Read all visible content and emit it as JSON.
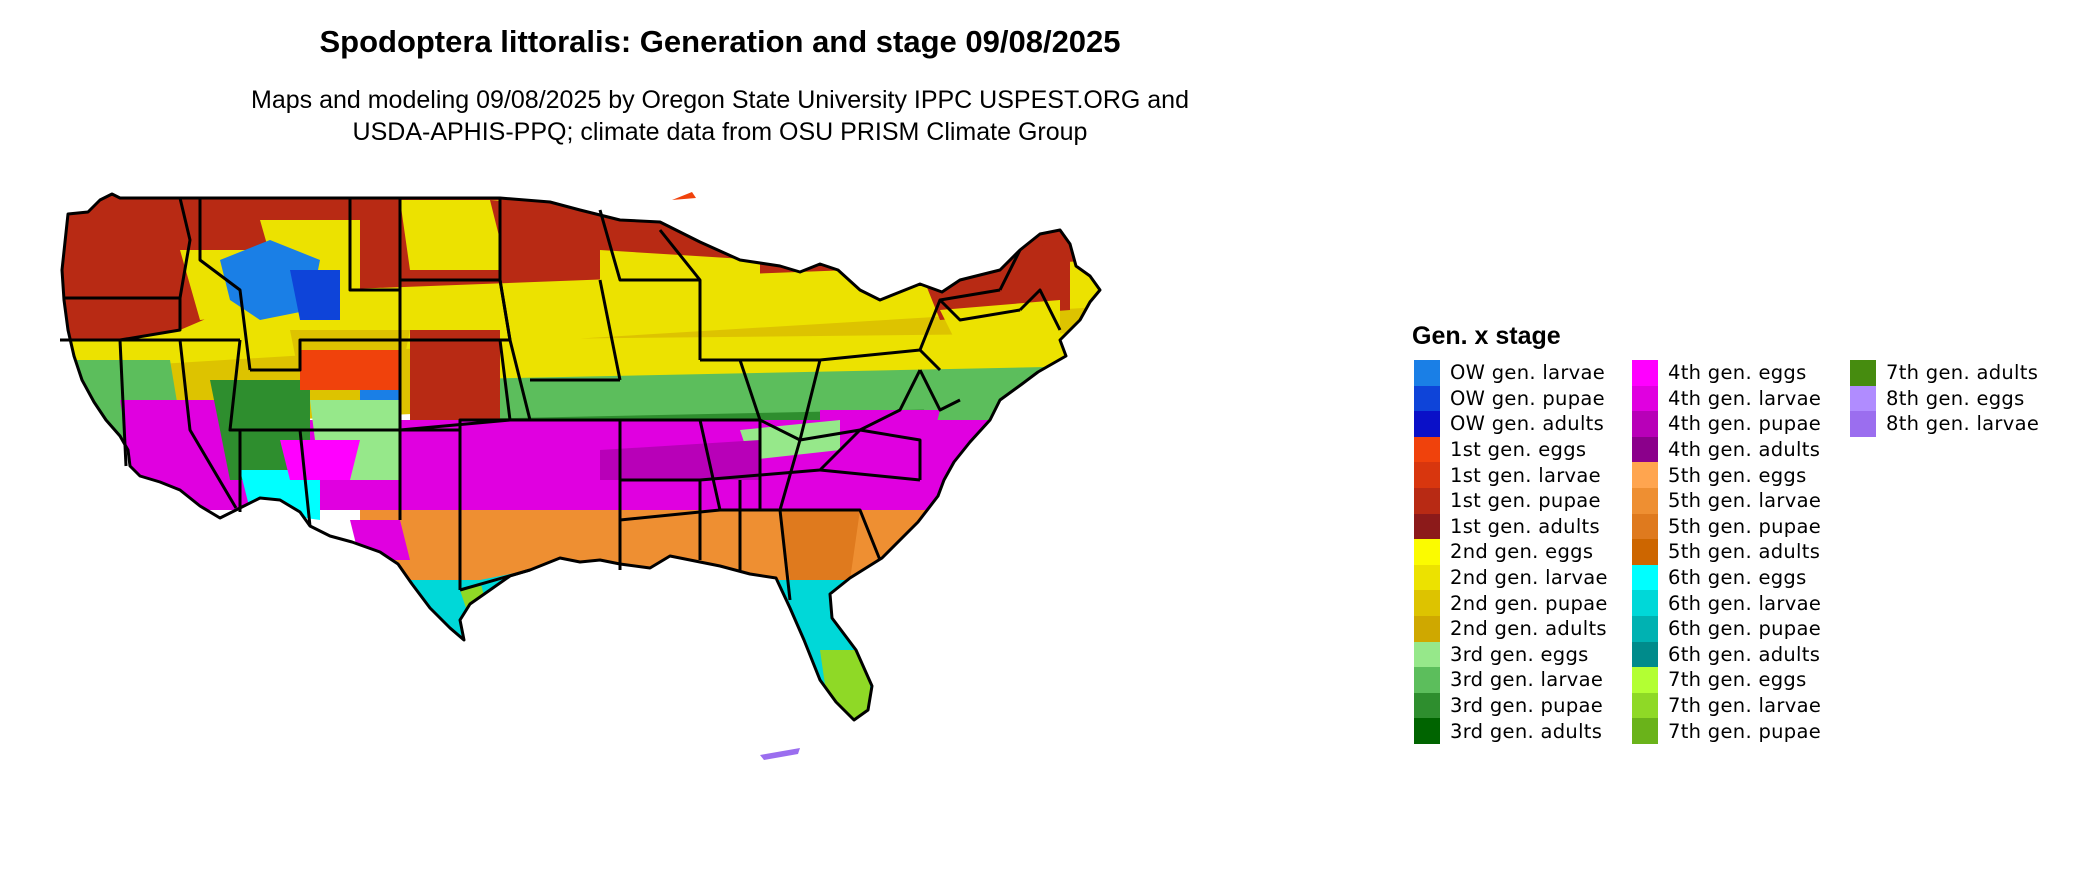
{
  "title": "Spodoptera littoralis: Generation and stage 09/08/2025",
  "subtitle_line1": "Maps and modeling 09/08/2025 by Oregon State University IPPC USPEST.ORG and",
  "subtitle_line2": "USDA-APHIS-PPQ; climate data from OSU PRISM Climate Group",
  "legend": {
    "title": "Gen. x stage",
    "columns": [
      [
        {
          "label": "OW gen. larvae",
          "color": "#1a7fe6"
        },
        {
          "label": "OW gen. pupae",
          "color": "#0e44d9"
        },
        {
          "label": "OW gen. adults",
          "color": "#0a10c8"
        },
        {
          "label": "1st gen. eggs",
          "color": "#f0420c"
        },
        {
          "label": "1st gen. larvae",
          "color": "#d8360e"
        },
        {
          "label": "1st gen. pupae",
          "color": "#b82a14"
        },
        {
          "label": "1st gen. adults",
          "color": "#8c1a1a"
        },
        {
          "label": "2nd gen. eggs",
          "color": "#fbfb00"
        },
        {
          "label": "2nd gen. larvae",
          "color": "#ece200"
        },
        {
          "label": "2nd gen. pupae",
          "color": "#ddc300"
        },
        {
          "label": "2nd gen. adults",
          "color": "#cfa800"
        },
        {
          "label": "3rd gen. eggs",
          "color": "#96e88a"
        },
        {
          "label": "3rd gen. larvae",
          "color": "#5cbe5c"
        },
        {
          "label": "3rd gen. pupae",
          "color": "#2e8e2e"
        },
        {
          "label": "3rd gen. adults",
          "color": "#006400"
        }
      ],
      [
        {
          "label": "4th gen. eggs",
          "color": "#ff00ff"
        },
        {
          "label": "4th gen. larvae",
          "color": "#e000e0"
        },
        {
          "label": "4th gen. pupae",
          "color": "#b800b8"
        },
        {
          "label": "4th gen. adults",
          "color": "#8b008b"
        },
        {
          "label": "5th gen. eggs",
          "color": "#ffa54f"
        },
        {
          "label": "5th gen. larvae",
          "color": "#ee8f32"
        },
        {
          "label": "5th gen. pupae",
          "color": "#df7a1e"
        },
        {
          "label": "5th gen. adults",
          "color": "#cd6600"
        },
        {
          "label": "6th gen. eggs",
          "color": "#00ffff"
        },
        {
          "label": "6th gen. larvae",
          "color": "#00d8d8"
        },
        {
          "label": "6th gen. pupae",
          "color": "#00b2b2"
        },
        {
          "label": "6th gen. adults",
          "color": "#008b8b"
        },
        {
          "label": "7th gen. eggs",
          "color": "#b3ff33"
        },
        {
          "label": "7th gen. larvae",
          "color": "#8fd926"
        },
        {
          "label": "7th gen. pupae",
          "color": "#6ab31a"
        }
      ],
      [
        {
          "label": "7th gen. adults",
          "color": "#468c0f"
        },
        {
          "label": "8th gen. eggs",
          "color": "#b08cff"
        },
        {
          "label": "8th gen. larvae",
          "color": "#9b6eef"
        }
      ]
    ]
  }
}
